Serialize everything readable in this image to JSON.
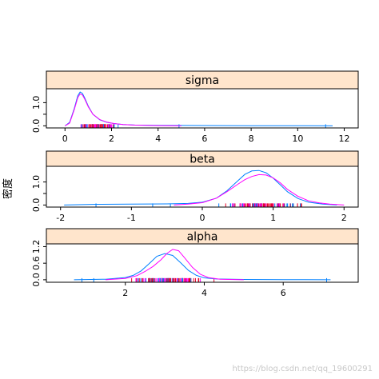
{
  "ylabel": "密度",
  "watermark": "https://blog.csdn.net/qq_19600291",
  "colors": {
    "strip_fill": "#FFE5CC",
    "series_blue": "#0080FF",
    "series_red": "#FF00FF",
    "rug_red": "#E8002A",
    "axis": "#000000"
  },
  "chart_data": [
    {
      "type": "density",
      "title": "sigma",
      "xlim": [
        -0.8,
        12.6
      ],
      "ylim": [
        -0.09,
        1.6
      ],
      "xticks": [
        0,
        2,
        4,
        6,
        8,
        10,
        12
      ],
      "xtick_labels": [
        "0",
        "2",
        "4",
        "6",
        "8",
        "10",
        "12"
      ],
      "xaxis_side": "top",
      "yticks": [
        0.0,
        0.5,
        1.0
      ],
      "ytick_labels": [
        "0.0",
        "",
        "1.0"
      ],
      "series": [
        {
          "color": "#0080FF",
          "x": [
            0.0,
            0.2,
            0.4,
            0.55,
            0.65,
            0.75,
            0.85,
            1.0,
            1.2,
            1.5,
            1.8,
            2.1,
            2.5,
            3.0,
            4.0,
            6.0,
            8.0,
            10.0,
            11.5
          ],
          "y": [
            0.0,
            0.15,
            0.75,
            1.3,
            1.46,
            1.4,
            1.2,
            0.85,
            0.5,
            0.26,
            0.15,
            0.1,
            0.06,
            0.035,
            0.02,
            0.012,
            0.008,
            0.006,
            0.0
          ]
        },
        {
          "color": "#FF00FF",
          "x": [
            0.0,
            0.2,
            0.4,
            0.55,
            0.65,
            0.75,
            0.85,
            1.0,
            1.2,
            1.5,
            1.8,
            2.1,
            2.5,
            3.0,
            4.0,
            5.0
          ],
          "y": [
            0.0,
            0.12,
            0.7,
            1.22,
            1.38,
            1.33,
            1.15,
            0.82,
            0.5,
            0.27,
            0.16,
            0.1,
            0.06,
            0.03,
            0.01,
            0.0
          ]
        }
      ],
      "rug_range": [
        0.4,
        2.5
      ],
      "rug_outliers": [
        4.9,
        11.2
      ]
    },
    {
      "type": "density",
      "title": "beta",
      "xlim": [
        -2.2,
        2.2
      ],
      "ylim": [
        -0.09,
        1.68
      ],
      "xticks": [
        -2,
        -1,
        0,
        1,
        2
      ],
      "xtick_labels": [
        "-2",
        "-1",
        "0",
        "1",
        "2"
      ],
      "xaxis_side": "bottom",
      "yticks": [
        0.0,
        0.5,
        1.0
      ],
      "ytick_labels": [
        "0.0",
        "",
        "1.0"
      ],
      "series": [
        {
          "color": "#0080FF",
          "x": [
            -1.95,
            -1.5,
            -1.0,
            -0.5,
            -0.2,
            0.0,
            0.2,
            0.35,
            0.5,
            0.6,
            0.7,
            0.8,
            0.9,
            1.0,
            1.1,
            1.2,
            1.35,
            1.5,
            1.7,
            1.9
          ],
          "y": [
            0.0,
            0.03,
            0.04,
            0.05,
            0.07,
            0.12,
            0.3,
            0.62,
            1.05,
            1.33,
            1.48,
            1.5,
            1.4,
            1.17,
            0.88,
            0.58,
            0.28,
            0.12,
            0.04,
            0.0
          ]
        },
        {
          "color": "#FF00FF",
          "x": [
            -0.4,
            -0.2,
            0.0,
            0.2,
            0.35,
            0.5,
            0.6,
            0.7,
            0.8,
            0.9,
            1.0,
            1.1,
            1.2,
            1.35,
            1.5,
            1.65,
            1.8,
            2.0
          ],
          "y": [
            0.0,
            0.04,
            0.1,
            0.3,
            0.58,
            0.9,
            1.1,
            1.24,
            1.32,
            1.3,
            1.18,
            0.96,
            0.68,
            0.38,
            0.18,
            0.09,
            0.04,
            0.0
          ]
        }
      ],
      "rug_range": [
        0.0,
        1.75
      ],
      "rug_outliers": [
        -1.5,
        -0.7,
        -0.45
      ]
    },
    {
      "type": "density",
      "title": "alpha",
      "xlim": [
        0.0,
        7.9
      ],
      "ylim": [
        -0.09,
        1.3
      ],
      "xticks": [
        2,
        4,
        6
      ],
      "xtick_labels": [
        "2",
        "4",
        "6"
      ],
      "xaxis_side": "bottom",
      "yticks": [
        0.0,
        0.6,
        1.2
      ],
      "ytick_labels": [
        "0.0",
        "0.6",
        "1.2"
      ],
      "series": [
        {
          "color": "#0080FF",
          "x": [
            0.7,
            1.5,
            2.0,
            2.2,
            2.4,
            2.6,
            2.8,
            3.0,
            3.2,
            3.4,
            3.6,
            3.8,
            4.0,
            4.3,
            5.0,
            6.0,
            7.2
          ],
          "y": [
            0.0,
            0.02,
            0.08,
            0.16,
            0.32,
            0.58,
            0.85,
            0.95,
            0.88,
            0.62,
            0.34,
            0.16,
            0.07,
            0.03,
            0.01,
            0.005,
            0.0
          ]
        },
        {
          "color": "#FF00FF",
          "x": [
            1.5,
            2.0,
            2.3,
            2.5,
            2.7,
            2.9,
            3.05,
            3.2,
            3.35,
            3.5,
            3.7,
            3.9,
            4.1,
            4.4,
            5.0
          ],
          "y": [
            0.0,
            0.05,
            0.15,
            0.3,
            0.48,
            0.72,
            0.95,
            1.1,
            1.05,
            0.8,
            0.45,
            0.2,
            0.08,
            0.02,
            0.0
          ]
        }
      ],
      "rug_range": [
        1.8,
        4.4
      ],
      "rug_outliers": [
        0.9,
        1.2,
        7.1
      ]
    }
  ]
}
